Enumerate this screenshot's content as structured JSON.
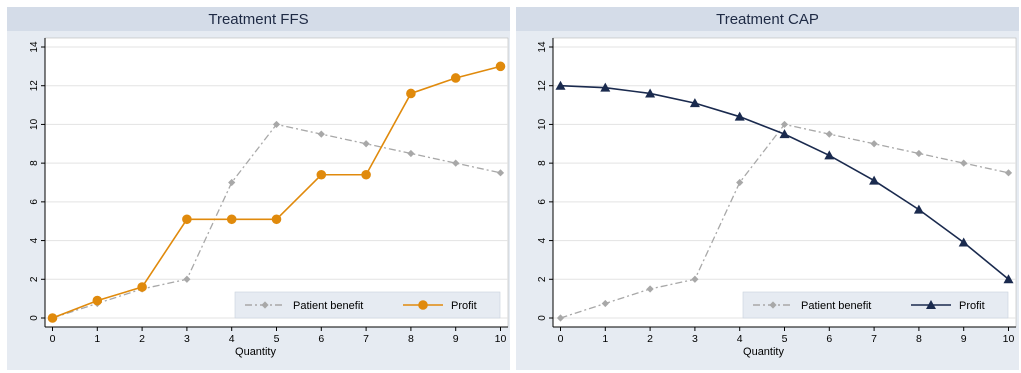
{
  "chart_data": [
    {
      "type": "line",
      "title": "Treatment FFS",
      "xlabel": "Quantity",
      "ylabel": "",
      "x": [
        0,
        1,
        2,
        3,
        4,
        5,
        6,
        7,
        8,
        9,
        10
      ],
      "xticks": [
        "0",
        "1",
        "2",
        "3",
        "4",
        "5",
        "6",
        "7",
        "8",
        "9",
        "10"
      ],
      "yticks": [
        "0",
        "2",
        "4",
        "6",
        "8",
        "10",
        "12",
        "14"
      ],
      "xlim": [
        0,
        10
      ],
      "ylim": [
        0,
        14
      ],
      "grid": true,
      "legend_position": "bottom-right",
      "series": [
        {
          "name": "Patient benefit",
          "values": [
            0,
            0.75,
            1.5,
            2,
            7,
            10,
            9.5,
            9,
            8.5,
            8,
            7.5
          ],
          "color": "#a8a8a8",
          "marker": "diamond",
          "dash": "dashdot"
        },
        {
          "name": "Profit",
          "values": [
            0,
            0.9,
            1.6,
            5.1,
            5.1,
            5.1,
            7.4,
            7.4,
            11.6,
            12.4,
            13
          ],
          "color": "#e08a0c",
          "marker": "circle",
          "dash": "solid"
        }
      ]
    },
    {
      "type": "line",
      "title": "Treatment CAP",
      "xlabel": "Quantity",
      "ylabel": "",
      "x": [
        0,
        1,
        2,
        3,
        4,
        5,
        6,
        7,
        8,
        9,
        10
      ],
      "xticks": [
        "0",
        "1",
        "2",
        "3",
        "4",
        "5",
        "6",
        "7",
        "8",
        "9",
        "10"
      ],
      "yticks": [
        "0",
        "2",
        "4",
        "6",
        "8",
        "10",
        "12",
        "14"
      ],
      "xlim": [
        0,
        10
      ],
      "ylim": [
        0,
        14
      ],
      "grid": true,
      "legend_position": "bottom-right",
      "series": [
        {
          "name": "Patient benefit",
          "values": [
            0,
            0.75,
            1.5,
            2,
            7,
            10,
            9.5,
            9,
            8.5,
            8,
            7.5
          ],
          "color": "#a8a8a8",
          "marker": "diamond",
          "dash": "dashdot"
        },
        {
          "name": "Profit",
          "values": [
            12,
            11.9,
            11.6,
            11.1,
            10.4,
            9.5,
            8.4,
            7.1,
            5.6,
            3.9,
            2
          ],
          "color": "#1a2a4e",
          "marker": "triangle",
          "dash": "solid"
        }
      ]
    }
  ],
  "theme": {
    "outer_background": "#e6ebf2",
    "title_bar": "#d4dce8",
    "plot_background": "#ffffff",
    "grid": "#e3e3e3",
    "axis": "#000000"
  }
}
